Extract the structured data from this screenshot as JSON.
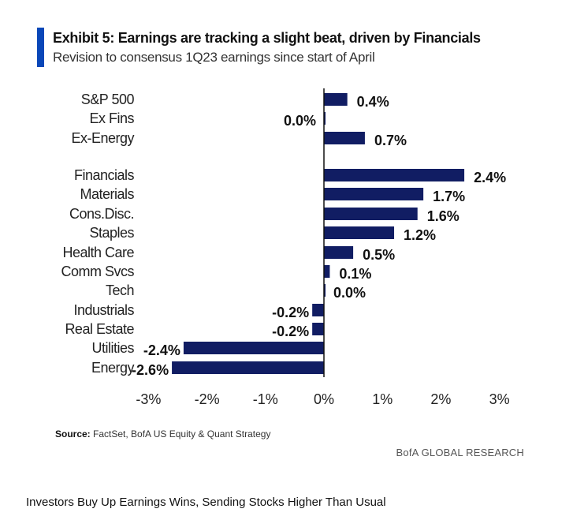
{
  "chart_data": {
    "type": "bar",
    "orientation": "horizontal",
    "title": "Exhibit 5: Earnings are tracking a slight beat, driven by Financials",
    "subtitle": "Revision to consensus 1Q23 earnings since start of April",
    "categories": [
      "S&P 500",
      "Ex Fins",
      "Ex-Energy",
      "Financials",
      "Materials",
      "Cons.Disc.",
      "Staples",
      "Health Care",
      "Comm Svcs",
      "Tech",
      "Industrials",
      "Real Estate",
      "Utilities",
      "Energy"
    ],
    "values": [
      0.4,
      0.0,
      0.7,
      2.4,
      1.7,
      1.6,
      1.2,
      0.5,
      0.1,
      0.0,
      -0.2,
      -0.2,
      -2.4,
      -2.6
    ],
    "data_labels": [
      "0.4%",
      "0.0%",
      "0.7%",
      "2.4%",
      "1.7%",
      "1.6%",
      "1.2%",
      "0.5%",
      "0.1%",
      "0.0%",
      "-0.2%",
      "-0.2%",
      "-2.4%",
      "-2.6%"
    ],
    "xlim": [
      -3,
      3
    ],
    "x_ticks": [
      "-3%",
      "-2%",
      "-1%",
      "0%",
      "1%",
      "2%",
      "3%"
    ],
    "x_tick_values": [
      -3,
      -2,
      -1,
      0,
      1,
      2,
      3
    ],
    "grid": false,
    "bar_color": "#111d63",
    "accent_color": "#0a47b8"
  },
  "source_label": "Source:",
  "source_text": "FactSet, BofA US Equity & Quant Strategy",
  "brand": "BofA GLOBAL RESEARCH",
  "caption": "Investors Buy Up Earnings Wins, Sending Stocks Higher Than Usual"
}
